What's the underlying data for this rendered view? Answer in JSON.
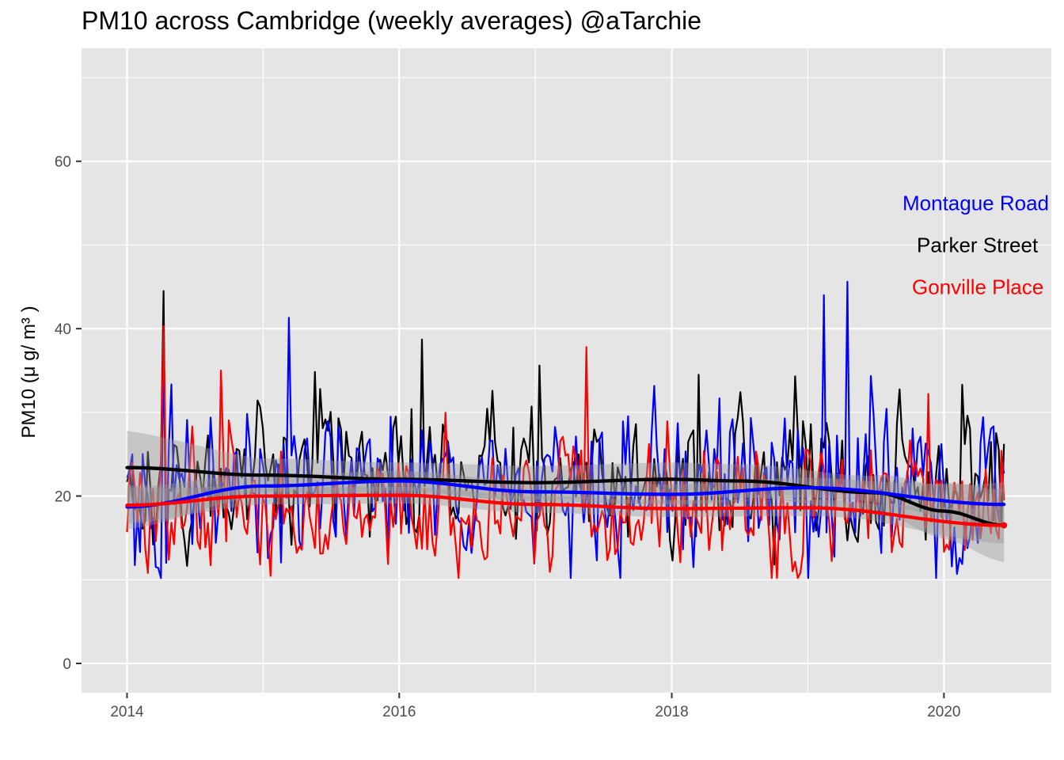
{
  "chart_data": {
    "type": "line",
    "title": "PM10 across Cambridge (weekly averages)  @aTarchie",
    "ylabel": "PM10 (μ g/ m³ )",
    "xlabel": "",
    "x_ticks": [
      "2014",
      "2016",
      "2018",
      "2020"
    ],
    "y_ticks": [
      0,
      20,
      40,
      60
    ],
    "xlim": [
      "2013-09-01",
      "2020-10-15"
    ],
    "ylim": [
      -3.5,
      73.5
    ],
    "grid": true,
    "legend": "none (direct labels on right)",
    "annotations": [
      {
        "text": "Montague Road",
        "color": "#0000FF",
        "y": 55
      },
      {
        "text": "Parker Street",
        "color": "#000000",
        "y": 50
      },
      {
        "text": "Gonville Place",
        "color": "#FF0000",
        "y": 45
      }
    ],
    "series": [
      {
        "name": "Parker Street",
        "color": "#000000",
        "smooth_x": [
          "2014-01-01",
          "2015-01-01",
          "2016-01-01",
          "2017-01-01",
          "2018-01-01",
          "2018-07-01",
          "2019-07-01",
          "2020-01-01",
          "2020-06-10"
        ],
        "smooth_y": [
          23.4,
          22.5,
          22.0,
          21.6,
          22.0,
          21.8,
          20.4,
          18.2,
          16.5
        ],
        "band_halfwidth": 2.0,
        "weekly_x_range": [
          "2014-01-01",
          "2020-06-10"
        ],
        "weekly_peaks": [
          {
            "x": "2014-04-10",
            "y": 44.5
          },
          {
            "x": "2016-03-01",
            "y": 38.7
          },
          {
            "x": "2017-01-10",
            "y": 35.6
          },
          {
            "x": "2018-03-15",
            "y": 34.5
          }
        ],
        "weekly_mean": 21.5,
        "weekly_spread": 6
      },
      {
        "name": "Montague Road",
        "color": "#0000FF",
        "smooth_x": [
          "2014-01-01",
          "2015-01-01",
          "2016-01-01",
          "2017-01-01",
          "2018-01-01",
          "2019-01-01",
          "2020-06-10"
        ],
        "smooth_y": [
          18.7,
          21.2,
          21.8,
          20.5,
          20.2,
          21.0,
          19.0
        ],
        "band_halfwidth": 1.2,
        "weekly_x_range": [
          "2014-01-01",
          "2020-06-10"
        ],
        "weekly_peaks": [
          {
            "x": "2015-03-10",
            "y": 41.3
          },
          {
            "x": "2019-02-10",
            "y": 44.0
          },
          {
            "x": "2019-04-20",
            "y": 45.6
          },
          {
            "x": "2014-04-10",
            "y": 39.5
          }
        ],
        "weekly_mean": 20.5,
        "weekly_spread": 7
      },
      {
        "name": "Gonville Place",
        "color": "#FF0000",
        "smooth_x": [
          "2014-01-01",
          "2015-01-01",
          "2016-01-01",
          "2017-01-01",
          "2018-01-01",
          "2019-01-01",
          "2020-06-10"
        ],
        "smooth_y": [
          18.9,
          20.0,
          20.1,
          19.0,
          18.5,
          18.6,
          16.5
        ],
        "band_halfwidth": 1.0,
        "weekly_x_range": [
          "2014-01-01",
          "2020-06-10"
        ],
        "weekly_peaks": [
          {
            "x": "2014-04-10",
            "y": 40.3
          },
          {
            "x": "2017-05-15",
            "y": 37.8
          },
          {
            "x": "2014-09-10",
            "y": 35.0
          }
        ],
        "weekly_mean": 18.5,
        "weekly_spread": 5.5
      }
    ]
  }
}
